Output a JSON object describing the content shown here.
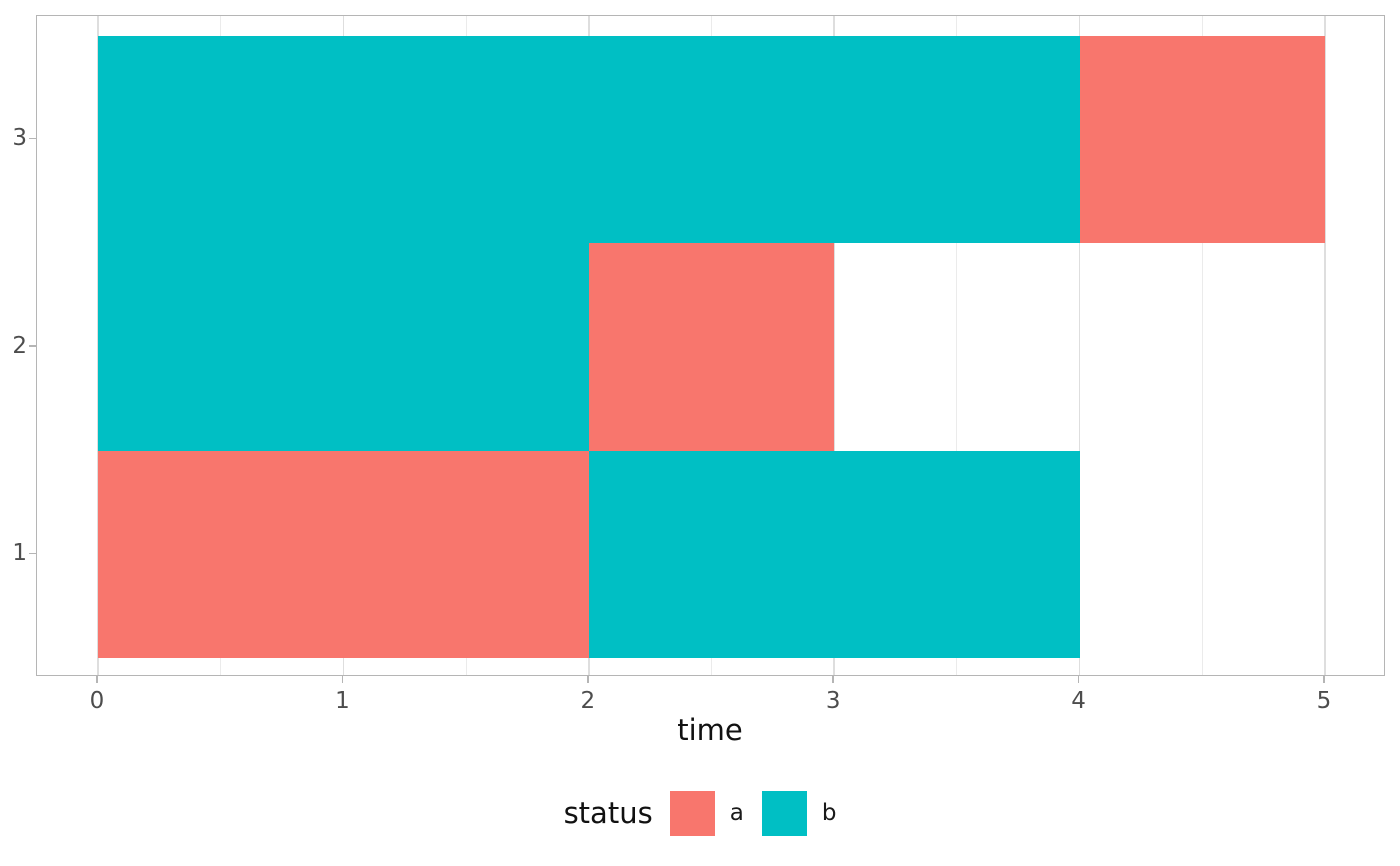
{
  "chart_data": {
    "type": "bar",
    "orientation": "horizontal",
    "title": "",
    "xlabel": "time",
    "ylabel": "",
    "x_ticks": [
      0,
      1,
      2,
      3,
      4,
      5
    ],
    "x_minor_ticks": [
      0.5,
      1.5,
      2.5,
      3.5,
      4.5
    ],
    "xlim": [
      -0.25,
      5.25
    ],
    "y_ticks": [
      1,
      2,
      3
    ],
    "ylim": [
      0.4,
      3.6
    ],
    "bar_thickness": 1,
    "grid": "vertical-only",
    "legend_position": "bottom",
    "legend_title": "status",
    "series": [
      {
        "name": "a",
        "color": "#F8766D",
        "segments": [
          {
            "y": 3,
            "x0": 4,
            "x1": 5
          },
          {
            "y": 2,
            "x0": 2,
            "x1": 3
          },
          {
            "y": 1,
            "x0": 0,
            "x1": 2
          }
        ]
      },
      {
        "name": "b",
        "color": "#00BFC4",
        "segments": [
          {
            "y": 3,
            "x0": 0,
            "x1": 4
          },
          {
            "y": 2,
            "x0": 0,
            "x1": 2
          },
          {
            "y": 1,
            "x0": 2,
            "x1": 4
          }
        ]
      }
    ],
    "panel_colors": {
      "border": "#b5b5b5",
      "grid_major": "#dedede",
      "grid_minor": "#ebebeb",
      "axis_text": "#4d4d4d",
      "title_text": "#111111"
    }
  }
}
